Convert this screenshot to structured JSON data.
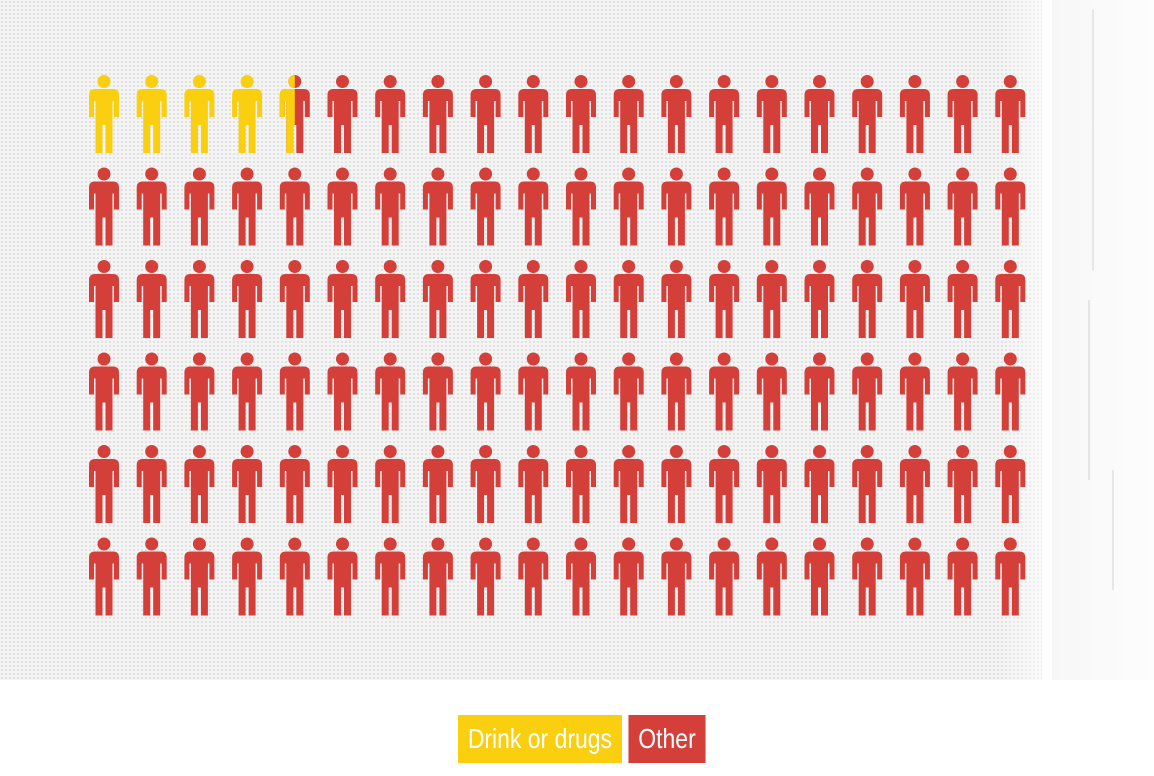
{
  "chart_data": {
    "type": "pictogram",
    "total_icons": 120,
    "rows": 6,
    "columns": 20,
    "series": [
      {
        "name": "Drink or drugs",
        "value": 4.5,
        "color": "#f9cf10"
      },
      {
        "name": "Other",
        "value": 115.5,
        "color": "#d43f3a"
      }
    ],
    "legend_position": "bottom-center"
  }
}
